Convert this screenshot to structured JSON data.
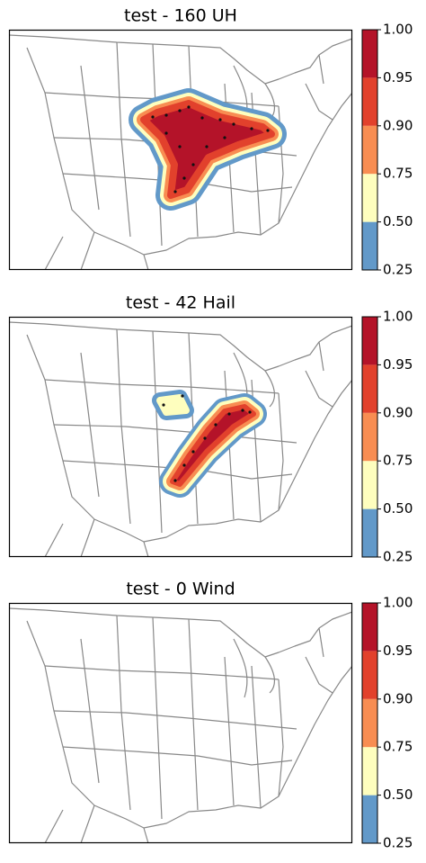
{
  "panels": [
    {
      "title": "test - 160 UH"
    },
    {
      "title": "test - 42 Hail"
    },
    {
      "title": "test - 0 Wind"
    }
  ],
  "colorbar": {
    "ticks": [
      0.25,
      {
        "value": 0.5,
        "label": "0.50"
      },
      0.75,
      {
        "value": 0.9,
        "label": "0.90"
      },
      0.95,
      {
        "value": 1,
        "label": "1.00"
      }
    ],
    "colors": [
      "#6299c9",
      "#fefebe",
      "#f88d52",
      "#e2412c",
      "#b41329"
    ]
  }
}
